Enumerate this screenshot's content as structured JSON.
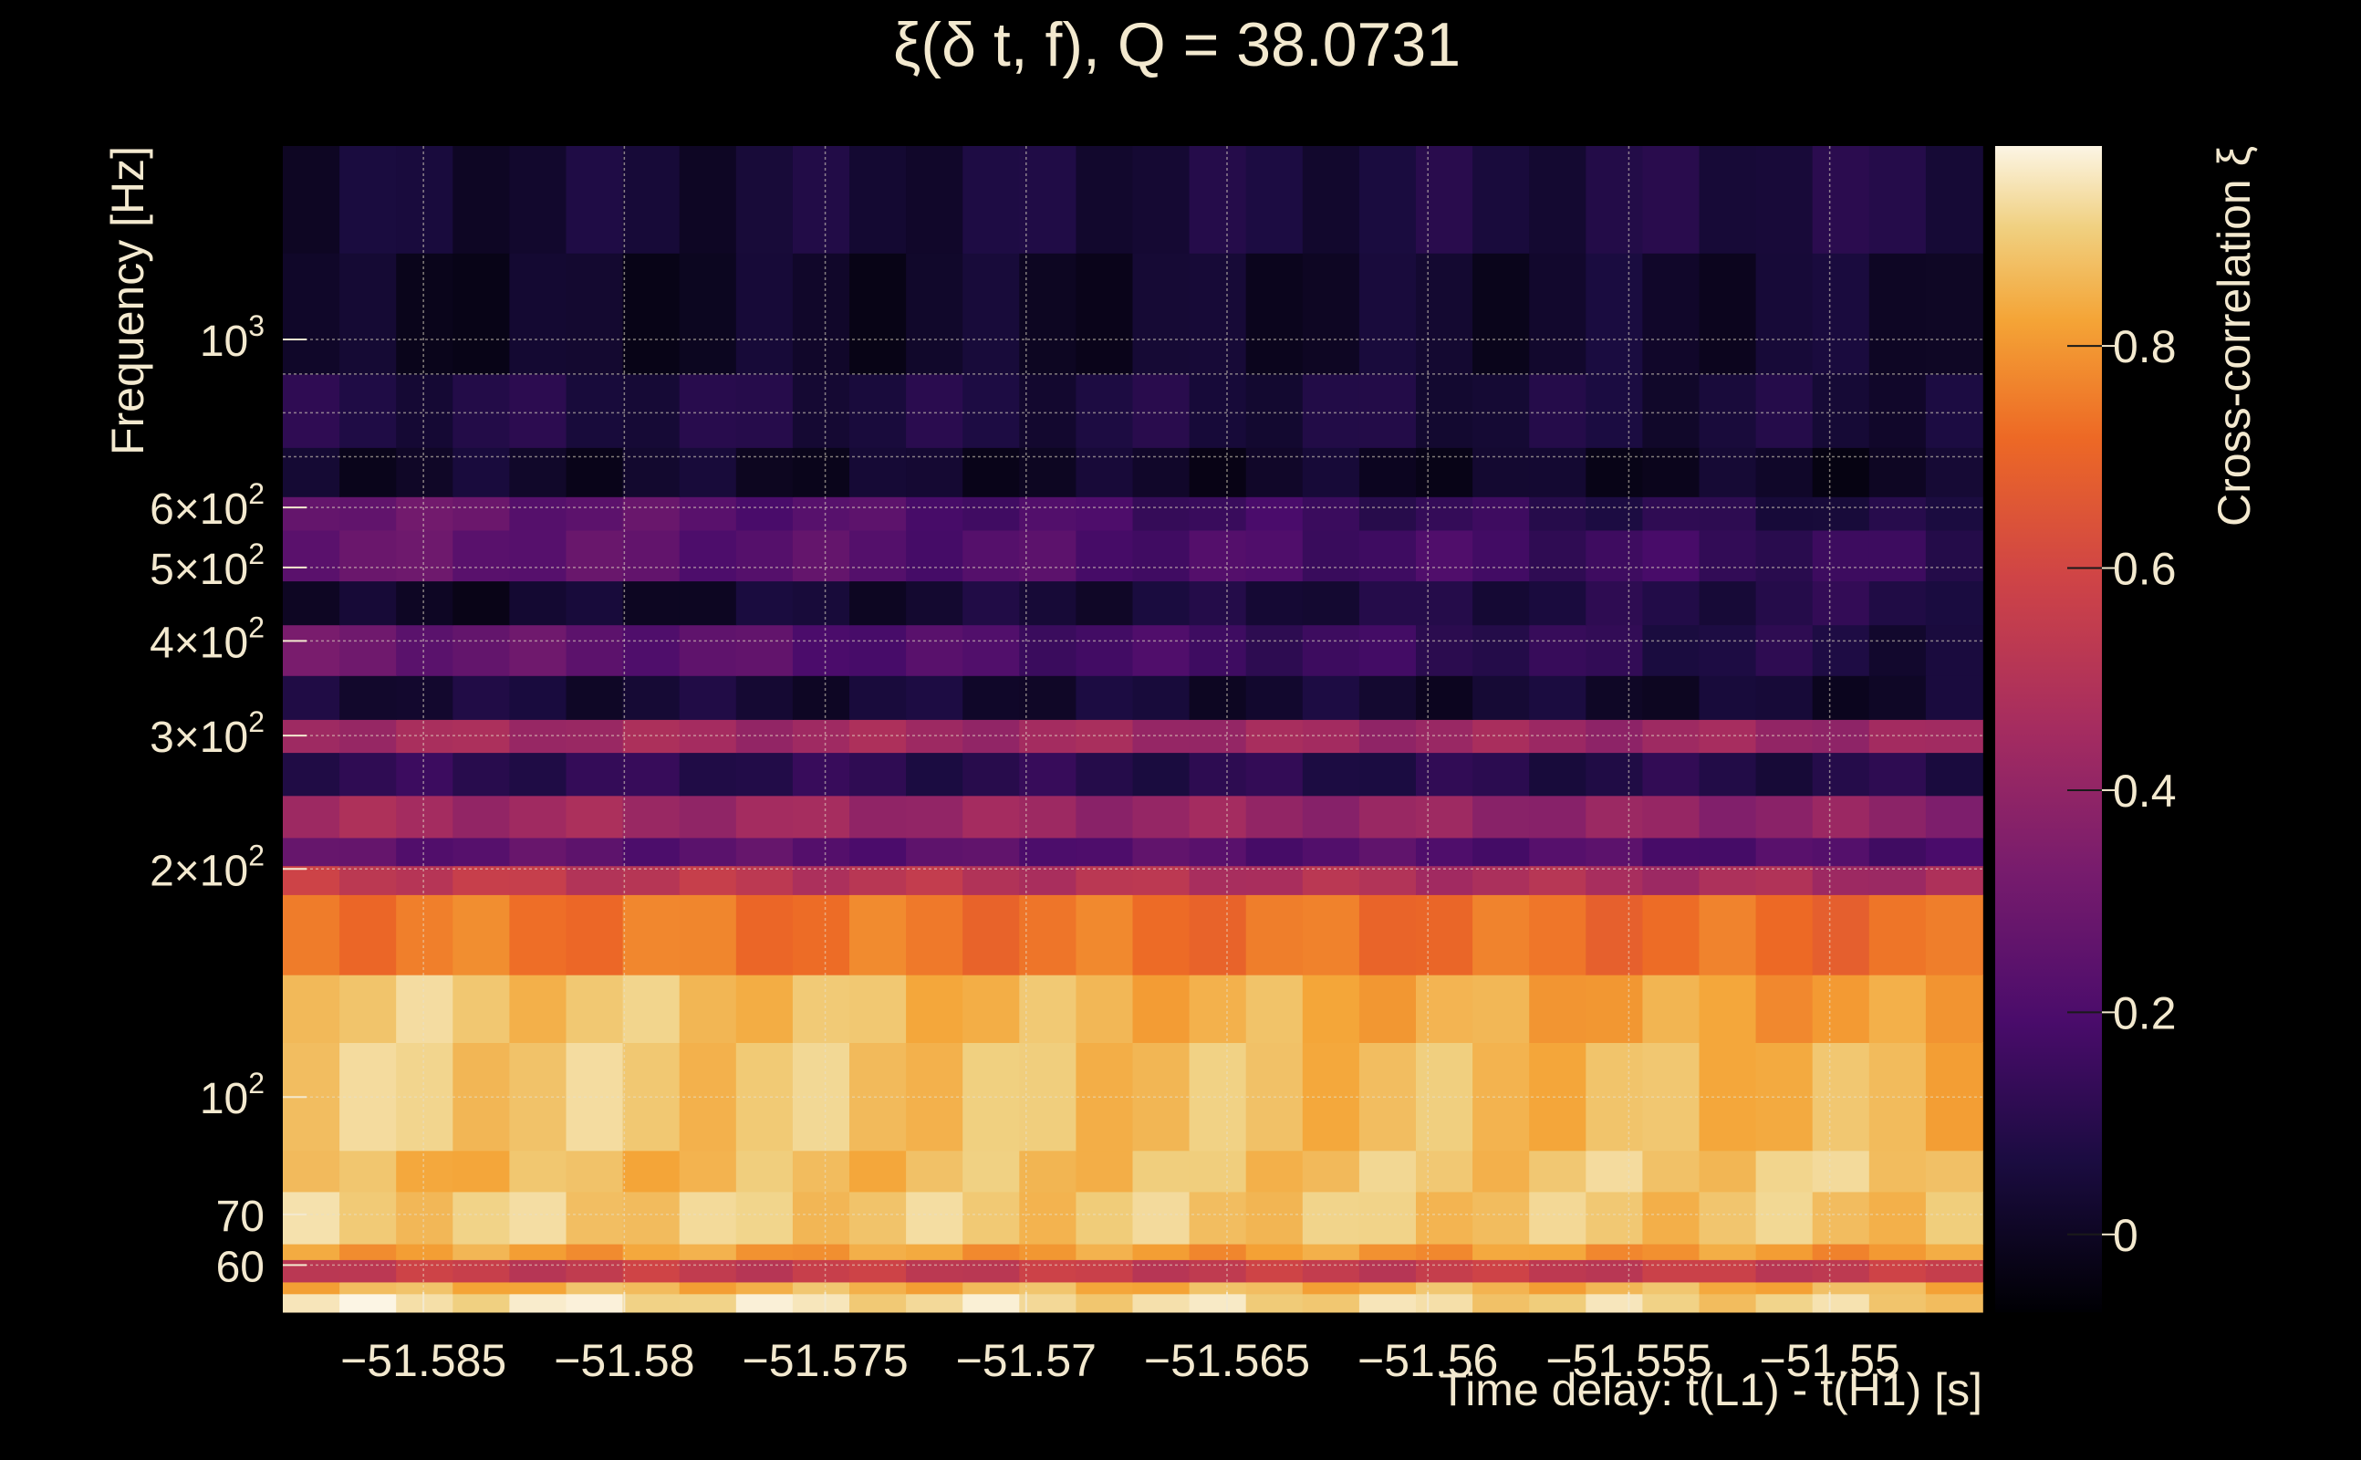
{
  "chart_data": {
    "type": "heatmap",
    "title": "ξ(δ t, f), Q = 38.0731",
    "xlabel": "Time delay: t(L1) - t(H1) [s]",
    "ylabel": "Frequency [Hz]",
    "colorbar_label": "Cross-correlation ξ",
    "x_scale": "linear",
    "y_scale": "log",
    "xlim": [
      -51.5885,
      -51.5462
    ],
    "ylim": [
      52,
      1800
    ],
    "clim": [
      -0.07,
      0.98
    ],
    "colormap": "inferno",
    "grid": true,
    "x_ticks": [
      {
        "value": -51.585,
        "label": "−51.585"
      },
      {
        "value": -51.58,
        "label": "−51.58"
      },
      {
        "value": -51.575,
        "label": "−51.575"
      },
      {
        "value": -51.57,
        "label": "−51.57"
      },
      {
        "value": -51.565,
        "label": "−51.565"
      },
      {
        "value": -51.56,
        "label": "−51.56"
      },
      {
        "value": -51.555,
        "label": "−51.555"
      },
      {
        "value": -51.55,
        "label": "−51.55"
      }
    ],
    "y_ticks": [
      {
        "value": 60,
        "label": "60"
      },
      {
        "value": 70,
        "label": "70"
      },
      {
        "value": 100,
        "label": "10",
        "sup": "2"
      },
      {
        "value": 200,
        "label": "2×10",
        "sup": "2"
      },
      {
        "value": 300,
        "label": "3×10",
        "sup": "2"
      },
      {
        "value": 400,
        "label": "4×10",
        "sup": "2"
      },
      {
        "value": 500,
        "label": "5×10",
        "sup": "2"
      },
      {
        "value": 600,
        "label": "6×10",
        "sup": "2"
      },
      {
        "value": 1000,
        "label": "10",
        "sup": "3"
      }
    ],
    "y_minor_gridlines": [
      700,
      800,
      900
    ],
    "colorbar_ticks": [
      {
        "value": 0,
        "label": "0"
      },
      {
        "value": 0.2,
        "label": "0.2"
      },
      {
        "value": 0.4,
        "label": "0.4"
      },
      {
        "value": 0.6,
        "label": "0.6"
      },
      {
        "value": 0.8,
        "label": "0.8"
      }
    ],
    "frequency_bands": [
      {
        "f_low": 52,
        "f_high": 55,
        "left": 0.95,
        "right": 0.9
      },
      {
        "f_low": 55,
        "f_high": 57,
        "left": 0.85,
        "right": 0.85
      },
      {
        "f_low": 57,
        "f_high": 61,
        "left": 0.55,
        "right": 0.55
      },
      {
        "f_low": 61,
        "f_high": 64,
        "left": 0.82,
        "right": 0.8
      },
      {
        "f_low": 64,
        "f_high": 75,
        "left": 0.9,
        "right": 0.88
      },
      {
        "f_low": 75,
        "f_high": 85,
        "left": 0.85,
        "right": 0.9
      },
      {
        "f_low": 85,
        "f_high": 118,
        "left": 0.9,
        "right": 0.85
      },
      {
        "f_low": 118,
        "f_high": 145,
        "left": 0.9,
        "right": 0.8
      },
      {
        "f_low": 145,
        "f_high": 185,
        "left": 0.75,
        "right": 0.72
      },
      {
        "f_low": 185,
        "f_high": 202,
        "left": 0.55,
        "right": 0.45
      },
      {
        "f_low": 202,
        "f_high": 220,
        "left": 0.25,
        "right": 0.2
      },
      {
        "f_low": 220,
        "f_high": 250,
        "left": 0.45,
        "right": 0.38
      },
      {
        "f_low": 250,
        "f_high": 285,
        "left": 0.12,
        "right": 0.08
      },
      {
        "f_low": 285,
        "f_high": 315,
        "left": 0.45,
        "right": 0.42
      },
      {
        "f_low": 315,
        "f_high": 360,
        "left": 0.05,
        "right": 0.02
      },
      {
        "f_low": 360,
        "f_high": 420,
        "left": 0.3,
        "right": 0.05
      },
      {
        "f_low": 420,
        "f_high": 480,
        "left": 0.0,
        "right": 0.1
      },
      {
        "f_low": 480,
        "f_high": 560,
        "left": 0.28,
        "right": 0.12
      },
      {
        "f_low": 560,
        "f_high": 620,
        "left": 0.3,
        "right": 0.05
      },
      {
        "f_low": 620,
        "f_high": 720,
        "left": 0.02,
        "right": 0.0
      },
      {
        "f_low": 720,
        "f_high": 900,
        "left": 0.08,
        "right": 0.05
      },
      {
        "f_low": 900,
        "f_high": 1300,
        "left": 0.0,
        "right": 0.03
      },
      {
        "f_low": 1300,
        "f_high": 1800,
        "left": 0.03,
        "right": 0.08
      }
    ]
  }
}
